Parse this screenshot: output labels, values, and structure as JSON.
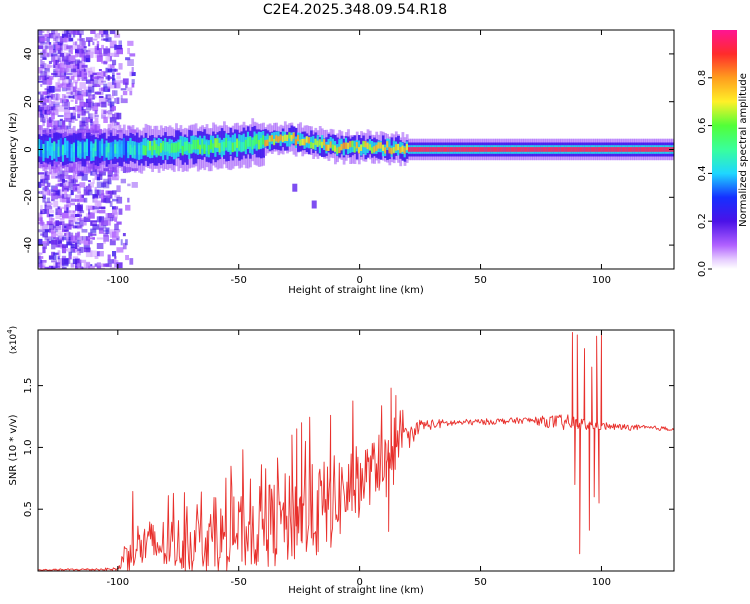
{
  "figure_title": "C2E4.2025.348.09.54.R18",
  "colors": {
    "snr_line": "#e8302c",
    "colormap": [
      "#ffffff",
      "#b061ff",
      "#4a12e8",
      "#1530ff",
      "#1fd7ff",
      "#39ff9c",
      "#52ff38",
      "#fff028",
      "#ff9d1e",
      "#ff2b2b",
      "#ff1493"
    ],
    "background": "#ffffff",
    "frame": "#000000"
  },
  "chart_data": [
    {
      "type": "heatmap",
      "name": "spectrogram",
      "xlabel": "Height of straight line (km)",
      "ylabel": "Frequency (Hz)",
      "xlim": [
        -133,
        130
      ],
      "ylim": [
        -50,
        50
      ],
      "xticks": [
        -100,
        -50,
        0,
        50,
        100
      ],
      "xtick_labels": [
        "-100",
        "-50",
        "0",
        "50",
        "100"
      ],
      "yticks": [
        -40,
        -20,
        0,
        20,
        40
      ],
      "ytick_labels": [
        "-40",
        "-20",
        "0",
        "20",
        "40"
      ],
      "ridge_trend": [
        {
          "x": -133,
          "f": 0
        },
        {
          "x": -100,
          "f": 0
        },
        {
          "x": -70,
          "f": 1
        },
        {
          "x": -50,
          "f": 2
        },
        {
          "x": -30,
          "f": 5
        },
        {
          "x": -20,
          "f": 3
        },
        {
          "x": -10,
          "f": 1
        },
        {
          "x": 0,
          "f": 1
        },
        {
          "x": 10,
          "f": 1
        },
        {
          "x": 20,
          "f": 0
        },
        {
          "x": 130,
          "f": 0
        }
      ],
      "side_branch": [
        {
          "x": -27,
          "f": -16
        },
        {
          "x": -19,
          "f": -23
        }
      ],
      "colorbar": {
        "label": "Normalized spectral amplitude",
        "range": [
          0,
          1
        ],
        "ticks": [
          0.0,
          0.2,
          0.4,
          0.6,
          0.8
        ],
        "tick_labels": [
          "0.0",
          "0.2",
          "0.4",
          "0.6",
          "0.8"
        ]
      }
    },
    {
      "type": "line",
      "name": "snr",
      "xlabel": "Height of straight line (km)",
      "ylabel": "SNR (10 * v/v)",
      "y_scale_label_base": "(x10",
      "y_scale_label_exp": "4",
      "y_scale_label_close": ")",
      "xlim": [
        -133,
        130
      ],
      "ylim": [
        0,
        19500
      ],
      "xticks": [
        -100,
        -50,
        0,
        50,
        100
      ],
      "xtick_labels": [
        "-100",
        "-50",
        "0",
        "50",
        "100"
      ],
      "yticks": [
        5000,
        10000,
        15000
      ],
      "ytick_labels": [
        "0.5",
        "1.0",
        "1.5"
      ],
      "envelope": [
        {
          "x": -133,
          "base": 80,
          "amp": 60
        },
        {
          "x": -100,
          "base": 150,
          "amp": 120
        },
        {
          "x": -95,
          "base": 2000,
          "amp": 2000
        },
        {
          "x": -70,
          "base": 2200,
          "amp": 2300
        },
        {
          "x": -50,
          "base": 3000,
          "amp": 3000
        },
        {
          "x": -30,
          "base": 4200,
          "amp": 3800
        },
        {
          "x": -15,
          "base": 5000,
          "amp": 4000
        },
        {
          "x": 0,
          "base": 7300,
          "amp": 3000
        },
        {
          "x": 5,
          "base": 8000,
          "amp": 2500
        },
        {
          "x": 15,
          "base": 9800,
          "amp": 1600
        },
        {
          "x": 25,
          "base": 11800,
          "amp": 500
        },
        {
          "x": 40,
          "base": 12000,
          "amp": 250
        },
        {
          "x": 70,
          "base": 12200,
          "amp": 250
        },
        {
          "x": 85,
          "base": 12000,
          "amp": 700
        },
        {
          "x": 100,
          "base": 11700,
          "amp": 300
        },
        {
          "x": 130,
          "base": 11500,
          "amp": 150
        }
      ],
      "features": [
        {
          "x": -52,
          "y": 6000
        },
        {
          "x": -28,
          "y": 11000
        },
        {
          "x": -26,
          "y": 11500
        },
        {
          "x": -24,
          "y": 12000
        },
        {
          "x": -12,
          "y": 12600
        },
        {
          "x": 8,
          "y": 11000
        },
        {
          "x": 11,
          "y": 6000
        },
        {
          "x": 12,
          "y": 3200
        },
        {
          "x": 13,
          "y": 14800
        },
        {
          "x": 14,
          "y": 7000
        },
        {
          "x": 15,
          "y": 14200
        },
        {
          "x": 88,
          "y": 19300
        },
        {
          "x": 89,
          "y": 7000
        },
        {
          "x": 90,
          "y": 19100
        },
        {
          "x": 91,
          "y": 1400
        },
        {
          "x": 93,
          "y": 18000
        },
        {
          "x": 95,
          "y": 3300
        },
        {
          "x": 96,
          "y": 16500
        },
        {
          "x": 97,
          "y": 6000
        },
        {
          "x": 98,
          "y": 19000
        },
        {
          "x": 99,
          "y": 5500
        },
        {
          "x": 100,
          "y": 19400
        },
        {
          "x": 102,
          "y": 12000
        }
      ]
    }
  ]
}
